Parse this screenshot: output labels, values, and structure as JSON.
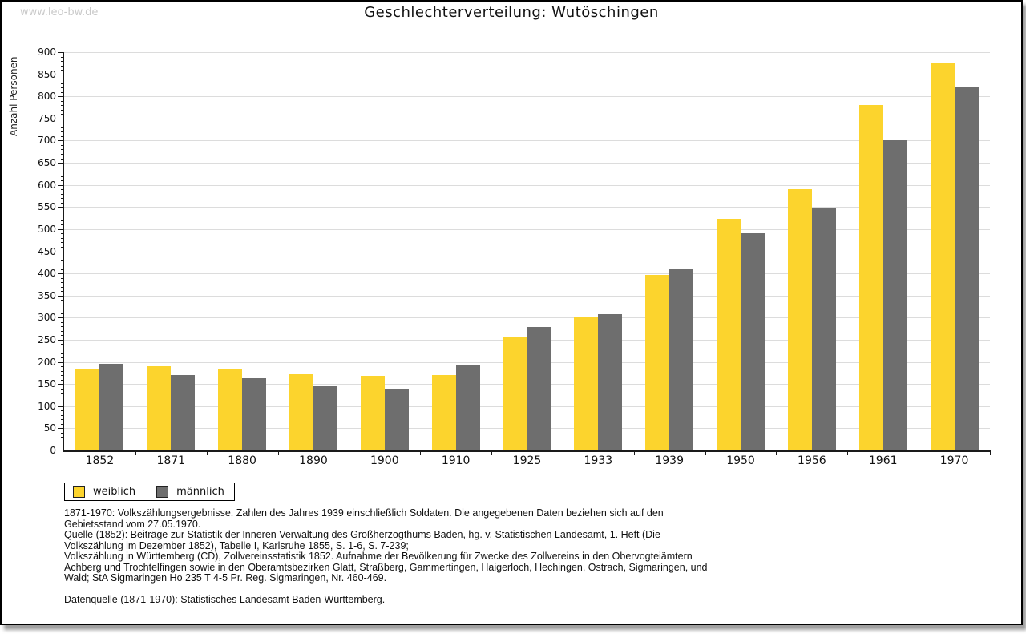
{
  "watermark": "www.leo-bw.de",
  "title": "Geschlechterverteilung: Wutöschingen",
  "chart_data": {
    "type": "bar",
    "title": "Geschlechterverteilung: Wutöschingen",
    "xlabel": "",
    "ylabel": "Anzahl Personen",
    "ylim": [
      0,
      900
    ],
    "ytick_step": 50,
    "yminor_step": 10,
    "grid": true,
    "legend_position": "bottom-left",
    "categories": [
      "1852",
      "1871",
      "1880",
      "1890",
      "1900",
      "1910",
      "1925",
      "1933",
      "1939",
      "1950",
      "1956",
      "1961",
      "1970"
    ],
    "series": [
      {
        "name": "weiblich",
        "color": "#FCD42D",
        "values": [
          185,
          190,
          185,
          174,
          168,
          171,
          255,
          300,
          397,
          523,
          590,
          781,
          875
        ]
      },
      {
        "name": "männlich",
        "color": "#6E6E6E",
        "values": [
          195,
          171,
          164,
          146,
          139,
          193,
          279,
          307,
          411,
          490,
          546,
          700,
          822
        ]
      }
    ]
  },
  "legend": {
    "items": [
      {
        "label": "weiblich",
        "color": "#FCD42D"
      },
      {
        "label": "männlich",
        "color": "#6E6E6E"
      }
    ]
  },
  "footnotes": {
    "blocks": [
      "1871-1970: Volkszählungsergebnisse. Zahlen des Jahres 1939 einschließlich Soldaten. Die angegebenen Daten beziehen sich auf den Gebietsstand vom 27.05.1970.",
      "Quelle (1852): Beiträge zur Statistik der Inneren Verwaltung des Großherzogthums Baden, hg. v. Statistischen Landesamt, 1. Heft (Die Volkszählung im Dezember 1852), Tabelle I, Karlsruhe 1855, S. 1-6, S. 7-239;",
      "Volkszählung in Württemberg (CD), Zollvereinsstatistik 1852. Aufnahme der Bevölkerung für Zwecke des Zollvereins in den Obervogteiämtern Achberg und Trochtelfingen sowie in den Oberamtsbezirken Glatt, Straßberg, Gammertingen, Haigerloch, Hechingen, Ostrach, Sigmaringen, und Wald; StA Sigmaringen Ho 235 T 4-5 Pr. Reg. Sigmaringen, Nr. 460-469.",
      "Datenquelle (1871-1970): Statistisches Landesamt Baden-Württemberg."
    ]
  },
  "colors": {
    "grid": "#dcdcdc",
    "axis": "#1a1a1a",
    "watermark": "#c9c9c9"
  }
}
